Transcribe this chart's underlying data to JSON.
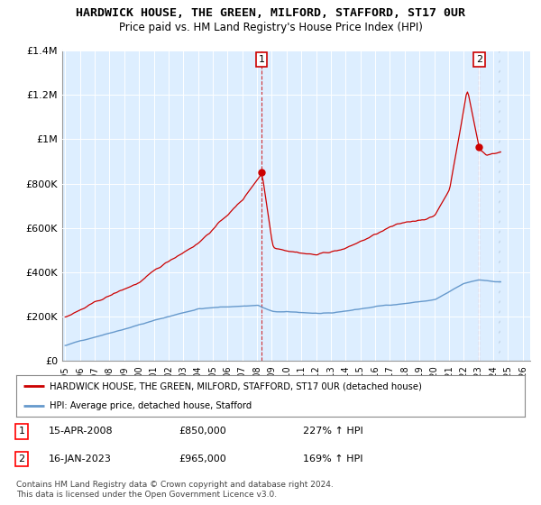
{
  "title": "HARDWICK HOUSE, THE GREEN, MILFORD, STAFFORD, ST17 0UR",
  "subtitle": "Price paid vs. HM Land Registry's House Price Index (HPI)",
  "hpi_label": "HPI: Average price, detached house, Stafford",
  "house_label": "HARDWICK HOUSE, THE GREEN, MILFORD, STAFFORD, ST17 0UR (detached house)",
  "house_color": "#cc0000",
  "hpi_color": "#6699cc",
  "background_color": "#ddeeff",
  "ylim": [
    0,
    1400000
  ],
  "yticks": [
    0,
    200000,
    400000,
    600000,
    800000,
    1000000,
    1200000,
    1400000
  ],
  "ytick_labels": [
    "£0",
    "£200K",
    "£400K",
    "£600K",
    "£800K",
    "£1M",
    "£1.2M",
    "£1.4M"
  ],
  "transaction1_date": "15-APR-2008",
  "transaction1_price": 850000,
  "transaction1_hpi": "227%",
  "transaction2_date": "16-JAN-2023",
  "transaction2_price": 965000,
  "transaction2_hpi": "169%",
  "t1_x": 2008.29,
  "t1_y": 850000,
  "t2_x": 2023.04,
  "t2_y": 965000,
  "footnote": "Contains HM Land Registry data © Crown copyright and database right 2024.\nThis data is licensed under the Open Government Licence v3.0.",
  "xlim_start": 1994.8,
  "xlim_end": 2026.5,
  "xtick_years": [
    1995,
    1996,
    1997,
    1998,
    1999,
    2000,
    2001,
    2002,
    2003,
    2004,
    2005,
    2006,
    2007,
    2008,
    2009,
    2010,
    2011,
    2012,
    2013,
    2014,
    2015,
    2016,
    2017,
    2018,
    2019,
    2020,
    2021,
    2022,
    2023,
    2024,
    2025,
    2026
  ]
}
